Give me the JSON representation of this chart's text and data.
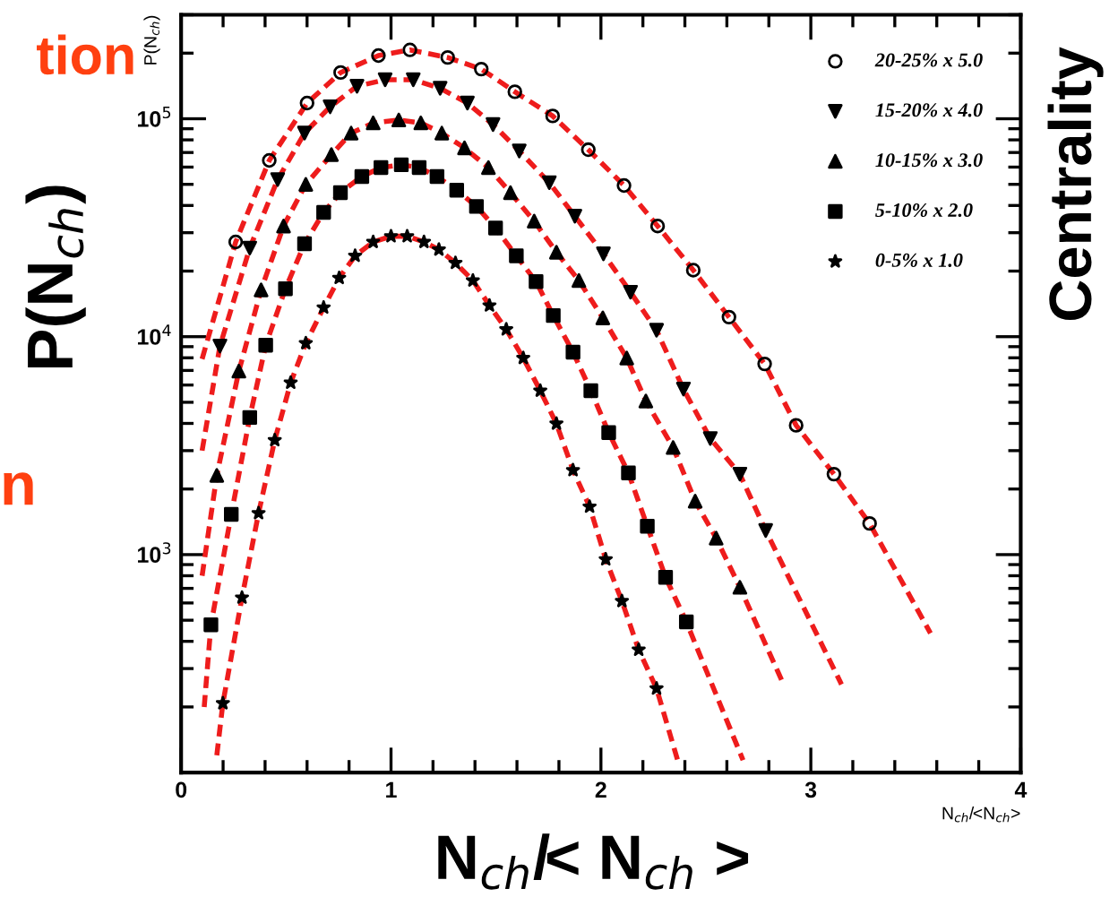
{
  "chart_data": {
    "type": "scatter",
    "xlabel": "N$_{ch}$/<N$_{ch}$>",
    "ylabel": "P(N$_{ch}$)",
    "annotations": [
      "P(N$_{ch}$)",
      "N$_{ch}$/< N$_{ch}$ >",
      "tion",
      "n",
      "Centrality"
    ],
    "log": "y",
    "xlim": [
      0,
      4
    ],
    "xticks": [
      0,
      1,
      2,
      3,
      4
    ],
    "ylim": [
      100,
      300000
    ],
    "yticks": [
      {
        "value": 1000,
        "label": "10$^{3}$"
      },
      {
        "value": 10000,
        "label": "10$^{4}$"
      },
      {
        "value": 100000,
        "label": "10$^{5}$"
      }
    ],
    "grid": false,
    "legend": "top right",
    "series": [
      {
        "name": "20-25% x 5.0",
        "color": "#000000",
        "marker": "open_circle",
        "x": [
          0.26,
          0.42,
          0.6,
          0.76,
          0.94,
          1.09,
          1.27,
          1.43,
          1.59,
          1.77,
          1.94,
          2.11,
          2.27,
          2.44,
          2.61,
          2.78,
          2.93,
          3.11,
          3.28
        ],
        "values": [
          27200,
          64400,
          118000,
          163000,
          195000,
          207000,
          191000,
          169000,
          133000,
          103000,
          72100,
          49400,
          32200,
          20200,
          12300,
          7500,
          3920,
          2340,
          1390
        ]
      },
      {
        "name": "15-20% x 4.0",
        "color": "#000000",
        "marker": "triangle_down",
        "x": [
          0.185,
          0.327,
          0.46,
          0.588,
          0.71,
          0.838,
          0.972,
          1.106,
          1.234,
          1.364,
          1.486,
          1.611,
          1.754,
          1.876,
          2.012,
          2.141,
          2.265,
          2.393,
          2.521,
          2.662,
          2.785
        ],
        "values": [
          9060,
          25500,
          52600,
          85900,
          113500,
          141000,
          151000,
          151000,
          138000,
          118000,
          94000,
          71100,
          50900,
          35700,
          24000,
          16000,
          10700,
          5750,
          3410,
          2340,
          1290
        ]
      },
      {
        "name": "10-15% x 3.0",
        "color": "#000000",
        "marker": "triangle",
        "x": [
          0.17,
          0.275,
          0.381,
          0.488,
          0.594,
          0.716,
          0.81,
          0.915,
          1.037,
          1.142,
          1.242,
          1.35,
          1.464,
          1.569,
          1.682,
          1.788,
          1.895,
          2.009,
          2.123,
          2.214,
          2.344,
          2.449,
          2.549,
          2.662
        ],
        "values": [
          2310,
          6950,
          16400,
          32200,
          50000,
          68500,
          85900,
          95700,
          98700,
          95700,
          85900,
          73500,
          59700,
          45800,
          33900,
          24400,
          18100,
          12200,
          7980,
          5070,
          3100,
          1760,
          1190,
          708
        ]
      },
      {
        "name": "5-10% x 2.0",
        "color": "#000000",
        "marker": "square",
        "x": [
          0.142,
          0.239,
          0.327,
          0.403,
          0.497,
          0.588,
          0.679,
          0.759,
          0.861,
          0.952,
          1.049,
          1.134,
          1.219,
          1.313,
          1.407,
          1.498,
          1.597,
          1.691,
          1.773,
          1.867,
          1.952,
          2.037,
          2.131,
          2.221,
          2.308,
          2.407
        ],
        "values": [
          476,
          1530,
          4260,
          9140,
          16600,
          26700,
          37200,
          45800,
          54300,
          59700,
          61500,
          59700,
          54300,
          47000,
          39600,
          31500,
          23500,
          17900,
          12500,
          8490,
          5650,
          3630,
          2370,
          1350,
          787,
          491
        ]
      },
      {
        "name": "0-5% x 1.0",
        "color": "#000000",
        "marker": "star",
        "x": [
          0.199,
          0.29,
          0.369,
          0.446,
          0.522,
          0.594,
          0.679,
          0.753,
          0.829,
          0.915,
          1.0,
          1.077,
          1.157,
          1.228,
          1.307,
          1.39,
          1.469,
          1.549,
          1.63,
          1.711,
          1.788,
          1.867,
          1.946,
          2.023,
          2.1,
          2.18,
          2.265
        ],
        "values": [
          208,
          635,
          1550,
          3350,
          6150,
          9330,
          13600,
          18600,
          23500,
          27200,
          28900,
          28900,
          27200,
          25100,
          21800,
          18100,
          13900,
          10800,
          7980,
          5650,
          3990,
          2440,
          1660,
          951,
          612,
          366,
          243
        ]
      },
      {
        "type": "line",
        "color": "#ee1c1c",
        "line_style": "dashed",
        "marker": "none",
        "x": [
          0.1,
          0.26,
          0.42,
          0.6,
          0.76,
          0.94,
          1.09,
          1.27,
          1.43,
          1.59,
          1.77,
          1.94,
          2.11,
          2.27,
          2.44,
          2.61,
          2.78,
          2.93,
          3.11,
          3.28,
          3.57
        ],
        "values": [
          7900,
          27200,
          64400,
          118000,
          163000,
          195000,
          207000,
          191000,
          169000,
          133000,
          103000,
          72100,
          49400,
          32200,
          20200,
          12300,
          7500,
          3920,
          2340,
          1390,
          436
        ]
      },
      {
        "type": "line",
        "color": "#ee1c1c",
        "line_style": "dashed",
        "marker": "none",
        "x": [
          0.1,
          0.185,
          0.327,
          0.46,
          0.588,
          0.71,
          0.838,
          0.972,
          1.106,
          1.234,
          1.364,
          1.486,
          1.611,
          1.754,
          1.876,
          2.012,
          2.141,
          2.265,
          2.393,
          2.521,
          2.662,
          2.785,
          3.146
        ],
        "values": [
          3000,
          9060,
          25500,
          52600,
          85900,
          113500,
          141000,
          151000,
          151000,
          138000,
          118000,
          94000,
          71100,
          50900,
          35700,
          24000,
          16000,
          10700,
          5750,
          3410,
          2340,
          1290,
          254
        ]
      },
      {
        "type": "line",
        "color": "#ee1c1c",
        "line_style": "dashed",
        "marker": "none",
        "x": [
          0.1,
          0.17,
          0.275,
          0.381,
          0.488,
          0.594,
          0.716,
          0.81,
          0.915,
          1.037,
          1.142,
          1.242,
          1.35,
          1.464,
          1.569,
          1.682,
          1.788,
          1.895,
          2.009,
          2.123,
          2.214,
          2.344,
          2.449,
          2.549,
          2.662,
          2.867
        ],
        "values": [
          800,
          2310,
          6950,
          16400,
          32200,
          50000,
          68500,
          85900,
          95700,
          98700,
          95700,
          85900,
          73500,
          59700,
          45800,
          33900,
          24400,
          18100,
          12200,
          7980,
          5070,
          3100,
          1760,
          1190,
          708,
          258
        ]
      },
      {
        "type": "line",
        "color": "#ee1c1c",
        "line_style": "dashed",
        "marker": "none",
        "x": [
          0.11,
          0.142,
          0.239,
          0.327,
          0.403,
          0.497,
          0.588,
          0.679,
          0.759,
          0.861,
          0.952,
          1.049,
          1.134,
          1.219,
          1.313,
          1.407,
          1.498,
          1.597,
          1.691,
          1.773,
          1.867,
          1.952,
          2.037,
          2.131,
          2.221,
          2.308,
          2.407,
          2.677
        ],
        "values": [
          200,
          476,
          1530,
          4260,
          9140,
          16600,
          26700,
          37200,
          45800,
          54300,
          59700,
          61500,
          59700,
          54300,
          47000,
          39600,
          31500,
          23500,
          17900,
          12500,
          8490,
          5650,
          3630,
          2370,
          1350,
          787,
          491,
          114
        ]
      },
      {
        "type": "line",
        "color": "#ee1c1c",
        "line_style": "dashed",
        "marker": "none",
        "x": [
          0.17,
          0.199,
          0.29,
          0.369,
          0.446,
          0.522,
          0.594,
          0.679,
          0.753,
          0.829,
          0.915,
          1.0,
          1.077,
          1.157,
          1.228,
          1.307,
          1.39,
          1.469,
          1.549,
          1.63,
          1.711,
          1.788,
          1.867,
          1.946,
          2.023,
          2.1,
          2.18,
          2.265,
          2.37
        ],
        "values": [
          120,
          208,
          635,
          1550,
          3350,
          6150,
          9330,
          13600,
          18600,
          23500,
          27200,
          28900,
          28900,
          27200,
          25100,
          21800,
          18100,
          13900,
          10800,
          7980,
          5650,
          3990,
          2440,
          1660,
          951,
          612,
          366,
          243,
          110
        ]
      }
    ]
  }
}
